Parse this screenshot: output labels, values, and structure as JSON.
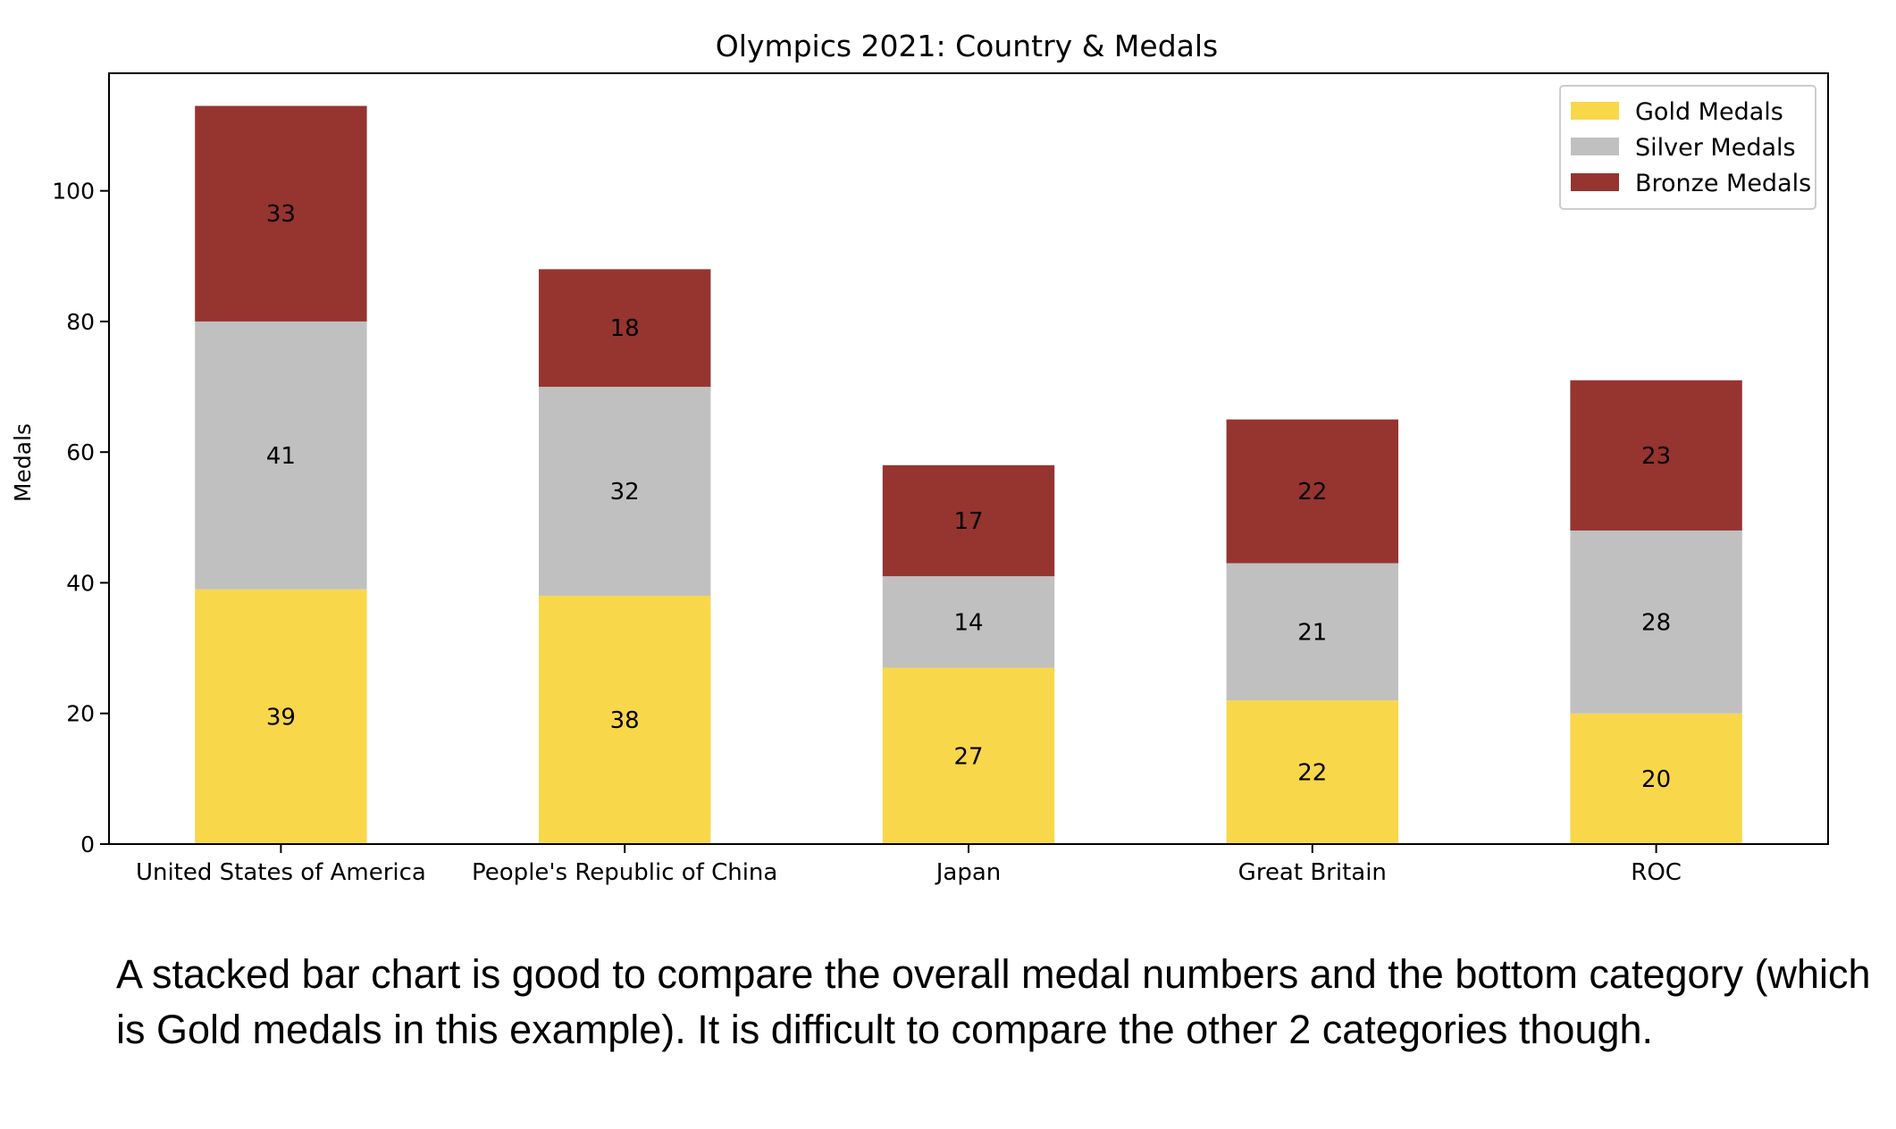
{
  "chart_data": {
    "type": "bar",
    "stacked": true,
    "title": "Olympics 2021: Country & Medals",
    "xlabel": "",
    "ylabel": "Medals",
    "categories": [
      "United States of America",
      "People's Republic of China",
      "Japan",
      "Great Britain",
      "ROC"
    ],
    "series": [
      {
        "name": "Gold Medals",
        "values": [
          39,
          38,
          27,
          22,
          20
        ],
        "color": "#f9d74a"
      },
      {
        "name": "Silver Medals",
        "values": [
          41,
          32,
          14,
          21,
          28
        ],
        "color": "#c0c0c0"
      },
      {
        "name": "Bronze Medals",
        "values": [
          33,
          18,
          17,
          22,
          23
        ],
        "color": "#963430"
      }
    ],
    "ylim": [
      0,
      118
    ],
    "yticks": [
      0,
      20,
      40,
      60,
      80,
      100
    ],
    "grid": false,
    "legend_position": "top-right",
    "data_labels": true
  },
  "caption": "A stacked bar chart is good to compare the overall medal numbers and the bottom category (which is Gold medals in this example). It is difficult to compare the other 2 categories though."
}
